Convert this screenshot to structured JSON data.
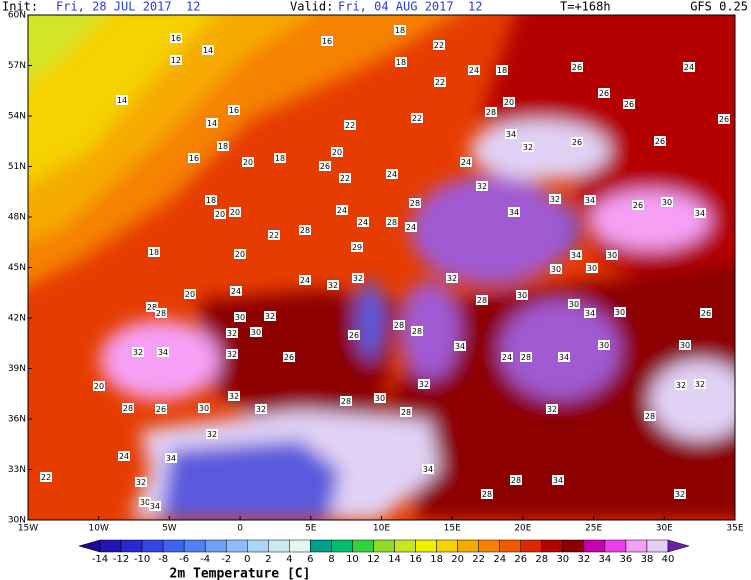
{
  "header": {
    "init_label": "Init:",
    "init_time": "Fri, 28 JUL 2017  12",
    "valid_label": "Valid:",
    "valid_time": "Fri, 04 AUG 2017  12",
    "lead": "T=+168h",
    "model": "GFS 0.25"
  },
  "map": {
    "lat_ticks": [
      {
        "value": 60,
        "label": "60N"
      },
      {
        "value": 57,
        "label": "57N"
      },
      {
        "value": 54,
        "label": "54N"
      },
      {
        "value": 51,
        "label": "51N"
      },
      {
        "value": 48,
        "label": "48N"
      },
      {
        "value": 45,
        "label": "45N"
      },
      {
        "value": 42,
        "label": "42N"
      },
      {
        "value": 39,
        "label": "39N"
      },
      {
        "value": 36,
        "label": "36N"
      },
      {
        "value": 33,
        "label": "33N"
      },
      {
        "value": 30,
        "label": "30N"
      }
    ],
    "lon_ticks": [
      {
        "value": -15,
        "label": "15W"
      },
      {
        "value": -10,
        "label": "10W"
      },
      {
        "value": -5,
        "label": "5W"
      },
      0,
      {
        "value": 5,
        "label": "5E"
      },
      {
        "value": 10,
        "label": "10E"
      },
      {
        "value": 15,
        "label": "15E"
      },
      {
        "value": 20,
        "label": "20E"
      },
      {
        "value": 25,
        "label": "25E"
      },
      {
        "value": 30,
        "label": "30E"
      },
      {
        "value": 35,
        "label": "35E"
      }
    ],
    "labels": [
      16,
      14,
      12,
      14,
      16,
      14,
      18,
      16,
      20,
      18,
      16,
      18,
      22,
      18,
      22,
      24,
      18,
      26,
      24,
      26,
      26,
      20,
      28,
      22,
      22,
      20,
      26,
      22,
      24,
      28,
      28,
      34,
      32,
      26,
      26,
      26,
      24,
      32,
      34,
      32,
      34,
      26,
      30,
      34,
      18,
      20,
      20,
      22,
      28,
      24,
      24,
      29,
      24,
      20,
      18,
      24,
      32,
      32,
      32,
      28,
      30,
      30,
      34,
      30,
      30,
      30,
      34,
      30,
      26,
      30,
      28,
      28,
      20,
      24,
      30,
      32,
      30,
      32,
      32,
      34,
      32,
      26,
      26,
      28,
      28,
      34,
      24,
      28,
      34,
      30,
      20,
      28,
      26,
      30,
      32,
      32,
      28,
      30,
      28,
      32,
      32,
      32,
      32,
      28,
      32,
      24,
      34,
      32,
      22,
      34,
      28,
      28,
      34,
      30,
      34,
      32
    ]
  },
  "colorbar": {
    "ticks": [
      -14,
      -12,
      -10,
      -8,
      -6,
      -4,
      -2,
      0,
      2,
      4,
      6,
      8,
      10,
      12,
      14,
      16,
      18,
      20,
      22,
      24,
      26,
      28,
      30,
      32,
      34,
      36,
      38,
      40
    ],
    "colors": [
      "#1e0a96",
      "#2314b4",
      "#2828d2",
      "#3246e6",
      "#3c64f0",
      "#5082f5",
      "#6ea0f5",
      "#8cbef5",
      "#aad7f5",
      "#c8ebf0",
      "#e6f5f0",
      "#00a08c",
      "#00be6e",
      "#32d23c",
      "#8cdc28",
      "#c8e61e",
      "#f0f000",
      "#f5d200",
      "#f5aa00",
      "#f58200",
      "#f05a00",
      "#dc2800",
      "#b40000",
      "#8c0000",
      "#c800b4",
      "#f03cf0",
      "#f5a0f5",
      "#e1d2f5",
      "#a05ad2",
      "#6e1eaa"
    ],
    "label": "2m Temperature [C]"
  }
}
